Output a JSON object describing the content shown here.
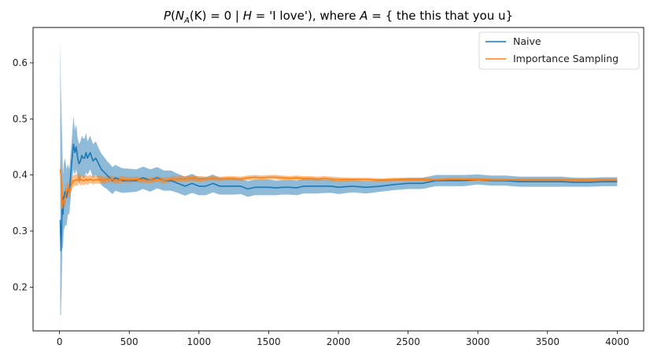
{
  "chart_data": {
    "type": "line",
    "title": "P(N_A(K) = 0 | H = 'I love'), where A = { the this that you u}",
    "title_parts": {
      "p": "P",
      "open": "(",
      "n": "N",
      "sub_a": "A",
      "k": "(K) = 0 | ",
      "h": "H",
      "rest": " = 'I love'), where ",
      "a": "A",
      "set": " = { the this that you u}"
    },
    "xlabel": "",
    "ylabel": "",
    "xlim": [
      -190,
      4190
    ],
    "ylim": [
      0.122,
      0.663
    ],
    "xticks": [
      0,
      500,
      1000,
      1500,
      2000,
      2500,
      3000,
      3500,
      4000
    ],
    "xtick_labels": [
      "0",
      "500",
      "1000",
      "1500",
      "2000",
      "2500",
      "3000",
      "3500",
      "4000"
    ],
    "yticks": [
      0.2,
      0.3,
      0.4,
      0.5,
      0.6
    ],
    "ytick_labels": [
      "0.2",
      "0.3",
      "0.4",
      "0.5",
      "0.6"
    ],
    "grid": false,
    "legend_position": "top-right",
    "series": [
      {
        "name": "Naive",
        "color": "#1f77b4",
        "band_color": "#1f77b4",
        "x": [
          5,
          10,
          15,
          20,
          25,
          30,
          40,
          50,
          60,
          70,
          80,
          90,
          100,
          110,
          120,
          130,
          140,
          150,
          160,
          170,
          180,
          190,
          200,
          220,
          240,
          260,
          280,
          300,
          320,
          340,
          360,
          380,
          400,
          450,
          500,
          550,
          600,
          650,
          700,
          750,
          800,
          850,
          900,
          950,
          1000,
          1050,
          1100,
          1150,
          1200,
          1250,
          1300,
          1350,
          1400,
          1450,
          1500,
          1550,
          1600,
          1650,
          1700,
          1750,
          1800,
          1850,
          1900,
          1950,
          2000,
          2100,
          2200,
          2300,
          2400,
          2500,
          2600,
          2700,
          2800,
          2900,
          3000,
          3100,
          3200,
          3300,
          3400,
          3500,
          3600,
          3700,
          3800,
          3900,
          4000
        ],
        "y": [
          0.32,
          0.265,
          0.3,
          0.36,
          0.33,
          0.36,
          0.37,
          0.36,
          0.375,
          0.37,
          0.4,
          0.43,
          0.455,
          0.44,
          0.45,
          0.43,
          0.42,
          0.425,
          0.435,
          0.43,
          0.43,
          0.44,
          0.43,
          0.44,
          0.425,
          0.43,
          0.42,
          0.41,
          0.405,
          0.4,
          0.395,
          0.39,
          0.395,
          0.39,
          0.39,
          0.39,
          0.395,
          0.39,
          0.395,
          0.39,
          0.39,
          0.385,
          0.38,
          0.385,
          0.38,
          0.38,
          0.385,
          0.38,
          0.38,
          0.38,
          0.38,
          0.375,
          0.378,
          0.378,
          0.378,
          0.377,
          0.378,
          0.378,
          0.377,
          0.38,
          0.38,
          0.38,
          0.38,
          0.38,
          0.378,
          0.38,
          0.378,
          0.38,
          0.383,
          0.385,
          0.385,
          0.39,
          0.39,
          0.39,
          0.392,
          0.39,
          0.39,
          0.388,
          0.388,
          0.388,
          0.388,
          0.387,
          0.387,
          0.388,
          0.388
        ],
        "lower": [
          0.15,
          0.15,
          0.2,
          0.27,
          0.27,
          0.3,
          0.31,
          0.31,
          0.33,
          0.33,
          0.36,
          0.39,
          0.41,
          0.4,
          0.41,
          0.395,
          0.385,
          0.39,
          0.4,
          0.395,
          0.395,
          0.405,
          0.4,
          0.41,
          0.395,
          0.4,
          0.392,
          0.382,
          0.378,
          0.375,
          0.37,
          0.366,
          0.372,
          0.368,
          0.369,
          0.37,
          0.375,
          0.37,
          0.376,
          0.372,
          0.372,
          0.368,
          0.363,
          0.368,
          0.364,
          0.364,
          0.369,
          0.365,
          0.365,
          0.365,
          0.366,
          0.361,
          0.364,
          0.364,
          0.364,
          0.364,
          0.365,
          0.365,
          0.364,
          0.367,
          0.367,
          0.367,
          0.368,
          0.368,
          0.366,
          0.369,
          0.367,
          0.37,
          0.373,
          0.375,
          0.375,
          0.38,
          0.38,
          0.38,
          0.383,
          0.381,
          0.381,
          0.379,
          0.379,
          0.379,
          0.379,
          0.379,
          0.379,
          0.38,
          0.38
        ],
        "upper": [
          0.64,
          0.55,
          0.5,
          0.45,
          0.4,
          0.42,
          0.43,
          0.41,
          0.42,
          0.41,
          0.44,
          0.47,
          0.505,
          0.48,
          0.49,
          0.465,
          0.455,
          0.46,
          0.47,
          0.465,
          0.465,
          0.475,
          0.46,
          0.47,
          0.455,
          0.46,
          0.448,
          0.438,
          0.432,
          0.425,
          0.42,
          0.414,
          0.418,
          0.412,
          0.411,
          0.41,
          0.415,
          0.41,
          0.414,
          0.408,
          0.408,
          0.402,
          0.397,
          0.402,
          0.396,
          0.396,
          0.401,
          0.395,
          0.395,
          0.395,
          0.394,
          0.389,
          0.392,
          0.392,
          0.392,
          0.39,
          0.391,
          0.391,
          0.39,
          0.393,
          0.393,
          0.393,
          0.392,
          0.392,
          0.39,
          0.391,
          0.389,
          0.39,
          0.393,
          0.395,
          0.395,
          0.4,
          0.4,
          0.4,
          0.401,
          0.399,
          0.399,
          0.397,
          0.397,
          0.397,
          0.397,
          0.395,
          0.395,
          0.396,
          0.396
        ]
      },
      {
        "name": "Importance Sampling",
        "color": "#ff7f0e",
        "band_color": "#ff7f0e",
        "x": [
          5,
          10,
          15,
          20,
          25,
          30,
          40,
          50,
          60,
          70,
          80,
          90,
          100,
          110,
          120,
          130,
          140,
          150,
          160,
          170,
          180,
          190,
          200,
          220,
          240,
          260,
          280,
          300,
          320,
          340,
          360,
          380,
          400,
          450,
          500,
          550,
          600,
          650,
          700,
          750,
          800,
          850,
          900,
          950,
          1000,
          1050,
          1100,
          1150,
          1200,
          1250,
          1300,
          1350,
          1400,
          1450,
          1500,
          1550,
          1600,
          1650,
          1700,
          1750,
          1800,
          1850,
          1900,
          1950,
          2000,
          2100,
          2200,
          2300,
          2400,
          2500,
          2600,
          2700,
          2800,
          2900,
          3000,
          3100,
          3200,
          3300,
          3400,
          3500,
          3600,
          3700,
          3800,
          3900,
          4000
        ],
        "y": [
          0.41,
          0.4,
          0.38,
          0.34,
          0.35,
          0.355,
          0.36,
          0.37,
          0.375,
          0.37,
          0.38,
          0.385,
          0.39,
          0.39,
          0.392,
          0.39,
          0.395,
          0.39,
          0.392,
          0.39,
          0.39,
          0.393,
          0.39,
          0.393,
          0.39,
          0.392,
          0.391,
          0.392,
          0.39,
          0.392,
          0.393,
          0.392,
          0.39,
          0.392,
          0.391,
          0.392,
          0.391,
          0.39,
          0.393,
          0.39,
          0.392,
          0.393,
          0.393,
          0.394,
          0.393,
          0.393,
          0.394,
          0.393,
          0.394,
          0.394,
          0.393,
          0.395,
          0.396,
          0.395,
          0.396,
          0.396,
          0.395,
          0.394,
          0.395,
          0.394,
          0.394,
          0.393,
          0.394,
          0.393,
          0.392,
          0.392,
          0.392,
          0.391,
          0.392,
          0.392,
          0.392,
          0.391,
          0.392,
          0.392,
          0.392,
          0.391,
          0.391,
          0.391,
          0.391,
          0.391,
          0.391,
          0.391,
          0.391,
          0.391,
          0.391
        ],
        "lower": [
          0.395,
          0.38,
          0.36,
          0.325,
          0.335,
          0.34,
          0.345,
          0.356,
          0.362,
          0.358,
          0.368,
          0.374,
          0.38,
          0.38,
          0.382,
          0.381,
          0.386,
          0.381,
          0.383,
          0.382,
          0.382,
          0.385,
          0.382,
          0.386,
          0.383,
          0.385,
          0.384,
          0.385,
          0.384,
          0.386,
          0.387,
          0.386,
          0.384,
          0.386,
          0.386,
          0.387,
          0.386,
          0.385,
          0.388,
          0.385,
          0.387,
          0.388,
          0.388,
          0.389,
          0.388,
          0.389,
          0.39,
          0.389,
          0.39,
          0.39,
          0.389,
          0.391,
          0.392,
          0.391,
          0.392,
          0.392,
          0.391,
          0.39,
          0.391,
          0.39,
          0.39,
          0.389,
          0.39,
          0.389,
          0.388,
          0.389,
          0.389,
          0.388,
          0.389,
          0.389,
          0.389,
          0.388,
          0.389,
          0.389,
          0.389,
          0.388,
          0.388,
          0.388,
          0.388,
          0.388,
          0.388,
          0.388,
          0.388,
          0.388,
          0.388
        ],
        "upper": [
          0.425,
          0.42,
          0.4,
          0.355,
          0.365,
          0.37,
          0.375,
          0.384,
          0.388,
          0.382,
          0.392,
          0.396,
          0.4,
          0.4,
          0.402,
          0.399,
          0.404,
          0.399,
          0.401,
          0.398,
          0.398,
          0.401,
          0.398,
          0.4,
          0.397,
          0.399,
          0.398,
          0.399,
          0.396,
          0.398,
          0.399,
          0.398,
          0.396,
          0.398,
          0.396,
          0.397,
          0.396,
          0.395,
          0.398,
          0.395,
          0.397,
          0.398,
          0.398,
          0.399,
          0.398,
          0.397,
          0.398,
          0.397,
          0.398,
          0.398,
          0.397,
          0.399,
          0.4,
          0.399,
          0.4,
          0.4,
          0.399,
          0.398,
          0.399,
          0.398,
          0.398,
          0.397,
          0.398,
          0.397,
          0.396,
          0.395,
          0.395,
          0.394,
          0.395,
          0.395,
          0.395,
          0.394,
          0.395,
          0.395,
          0.395,
          0.394,
          0.394,
          0.394,
          0.394,
          0.394,
          0.394,
          0.394,
          0.394,
          0.394,
          0.394
        ]
      }
    ]
  }
}
